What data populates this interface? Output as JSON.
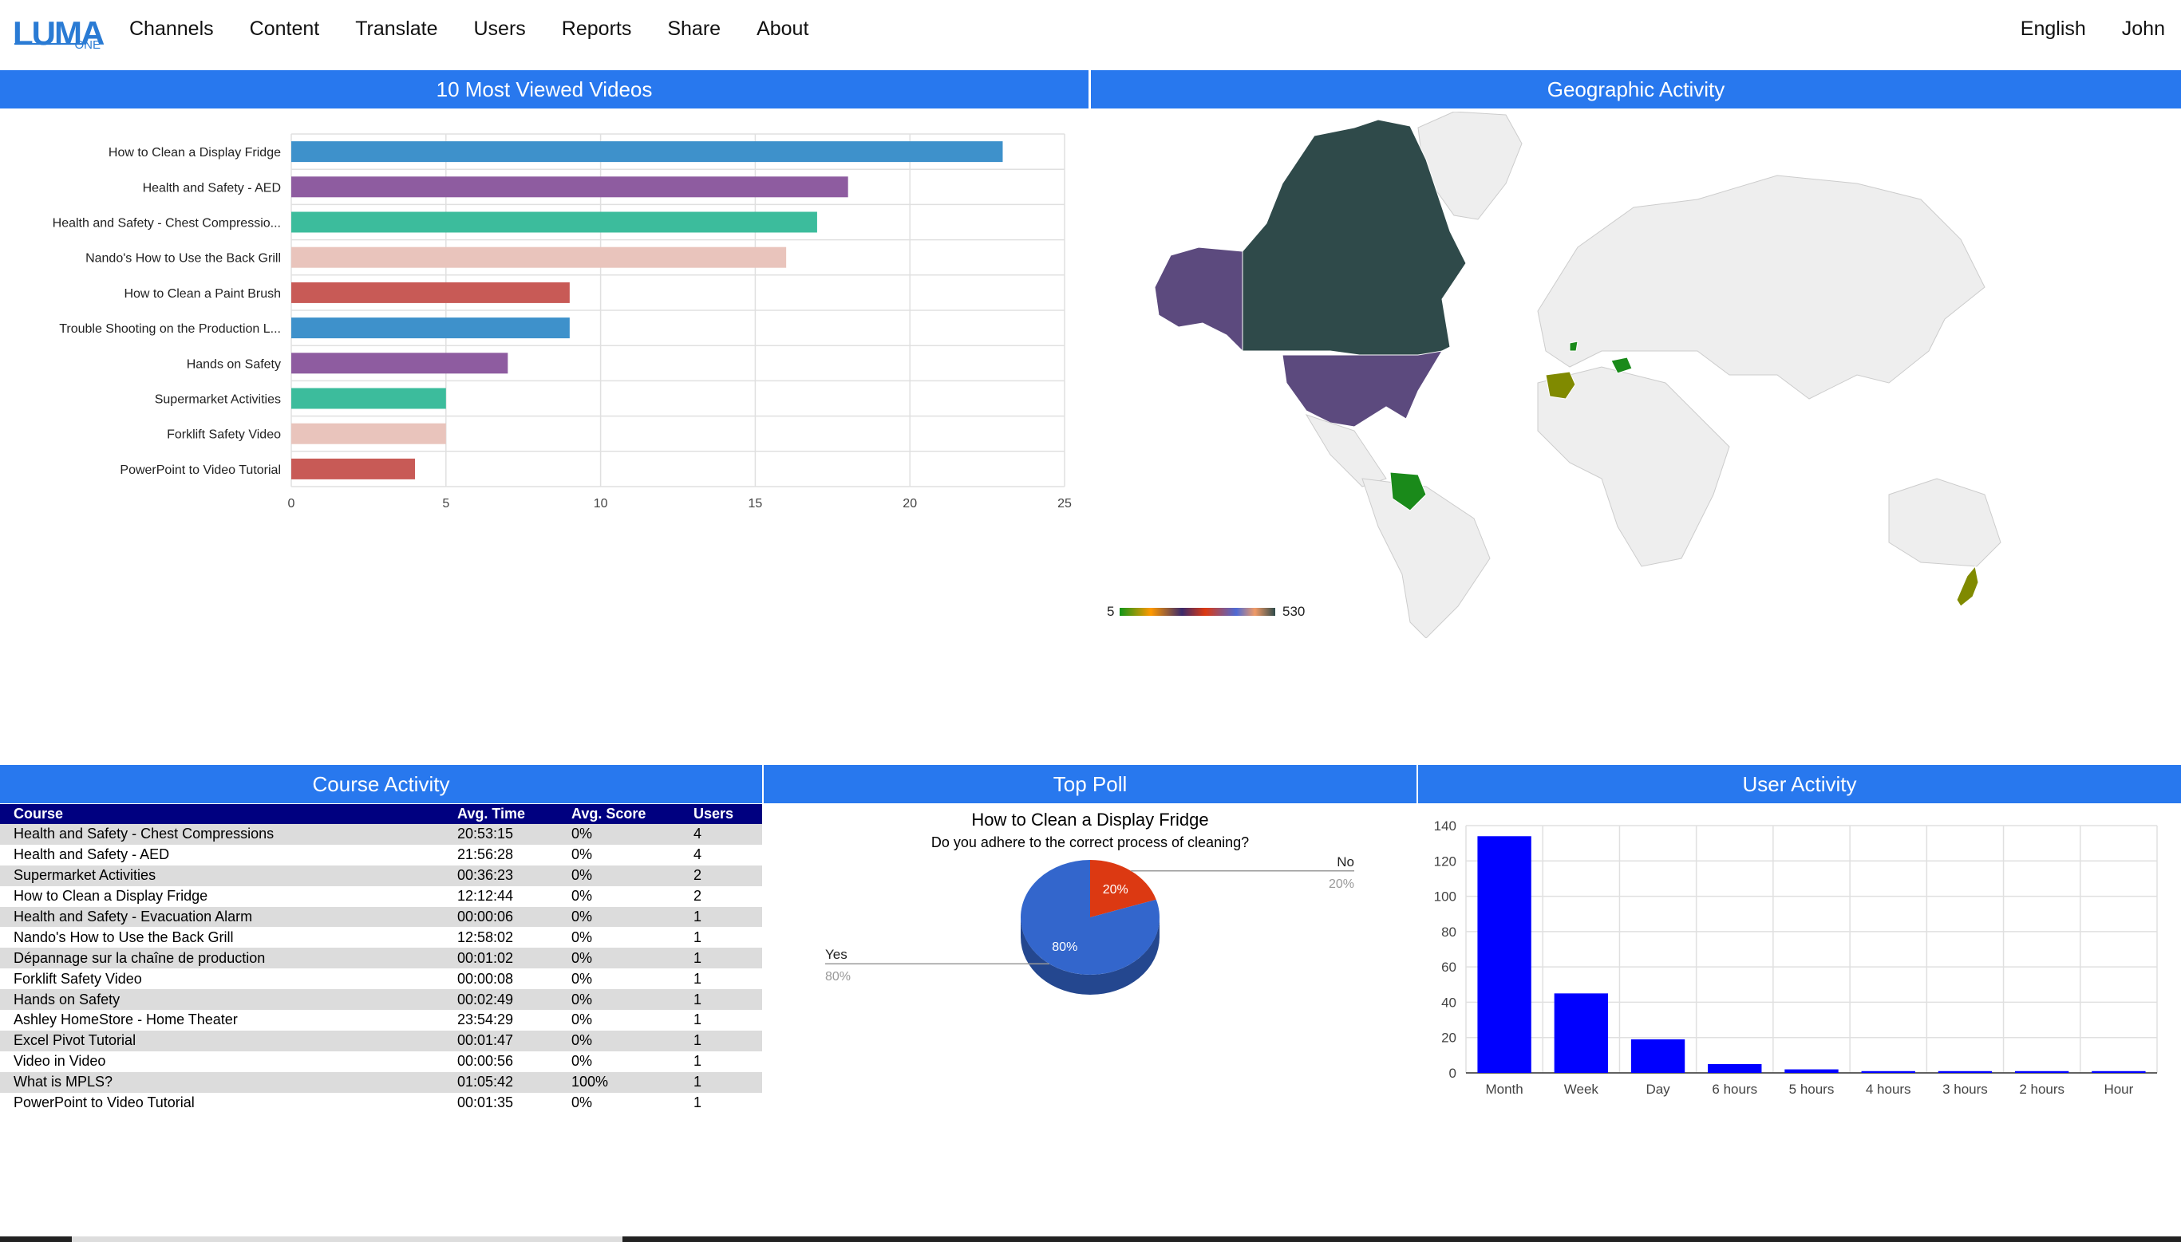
{
  "nav": {
    "logo": {
      "text": "LUMA",
      "sub": "ONE"
    },
    "items": [
      "Channels",
      "Content",
      "Translate",
      "Users",
      "Reports",
      "Share",
      "About"
    ],
    "language": "English",
    "user": "John"
  },
  "panels": {
    "videos": "10 Most Viewed Videos",
    "geo": "Geographic Activity",
    "course": "Course Activity",
    "poll": "Top Poll",
    "user_activity": "User Activity"
  },
  "colors": {
    "header_blue": "#2878ee",
    "table_header": "#000080",
    "user_bar": "#0000ff",
    "video_palette": [
      "#3e91cb",
      "#8e5ca0",
      "#3cbc9c",
      "#e9c4bc",
      "#c85a56"
    ]
  },
  "geo_legend": {
    "min": "5",
    "max": "530"
  },
  "course_table": {
    "headers": [
      "Course",
      "Avg. Time",
      "Avg. Score",
      "Users"
    ],
    "rows": [
      [
        "Health and Safety - Chest Compressions",
        "20:53:15",
        "0%",
        "4"
      ],
      [
        "Health and Safety - AED",
        "21:56:28",
        "0%",
        "4"
      ],
      [
        "Supermarket Activities",
        "00:36:23",
        "0%",
        "2"
      ],
      [
        "How to Clean a Display Fridge",
        "12:12:44",
        "0%",
        "2"
      ],
      [
        "Health and Safety - Evacuation Alarm",
        "00:00:06",
        "0%",
        "1"
      ],
      [
        "Nando's How to Use the Back Grill",
        "12:58:02",
        "0%",
        "1"
      ],
      [
        "Dépannage sur la chaîne de production",
        "00:01:02",
        "0%",
        "1"
      ],
      [
        "Forklift Safety Video",
        "00:00:08",
        "0%",
        "1"
      ],
      [
        "Hands on Safety",
        "00:02:49",
        "0%",
        "1"
      ],
      [
        "Ashley HomeStore - Home Theater",
        "23:54:29",
        "0%",
        "1"
      ],
      [
        "Excel Pivot Tutorial",
        "00:01:47",
        "0%",
        "1"
      ],
      [
        "Video in Video",
        "00:00:56",
        "0%",
        "1"
      ],
      [
        "What is MPLS?",
        "01:05:42",
        "100%",
        "1"
      ],
      [
        "PowerPoint to Video Tutorial",
        "00:01:35",
        "0%",
        "1"
      ]
    ]
  },
  "chart_data": [
    {
      "type": "bar",
      "orientation": "horizontal",
      "categories": [
        "How to Clean a Display Fridge",
        "Health and Safety - AED",
        "Health and Safety - Chest Compressio...",
        "Nando's How to Use the Back Grill",
        "How to Clean a Paint Brush",
        "Trouble Shooting on the Production L...",
        "Hands on Safety",
        "Supermarket Activities",
        "Forklift Safety Video",
        "PowerPoint to Video Tutorial"
      ],
      "values": [
        23,
        18,
        17,
        16,
        9,
        9,
        7,
        5,
        5,
        4
      ],
      "xlim": [
        0,
        25
      ],
      "xticks": [
        "0",
        "5",
        "10",
        "15",
        "20",
        "25"
      ],
      "grid": true
    },
    {
      "type": "pie",
      "title": "How to Clean a Display Fridge",
      "subtitle": "Do you adhere to the correct process of cleaning?",
      "slices": [
        {
          "label": "No",
          "value": 20,
          "pct": "20%",
          "color": "#dc3912"
        },
        {
          "label": "Yes",
          "value": 80,
          "pct": "80%",
          "color": "#3366cc"
        }
      ]
    },
    {
      "type": "bar",
      "categories": [
        "Month",
        "Week",
        "Day",
        "6 hours",
        "5 hours",
        "4 hours",
        "3 hours",
        "2 hours",
        "Hour"
      ],
      "values": [
        134,
        45,
        19,
        5,
        2,
        1,
        1,
        1,
        1
      ],
      "ylim": [
        0,
        140
      ],
      "yticks": [
        "0",
        "20",
        "40",
        "60",
        "80",
        "100",
        "120",
        "140"
      ],
      "grid": true
    }
  ]
}
